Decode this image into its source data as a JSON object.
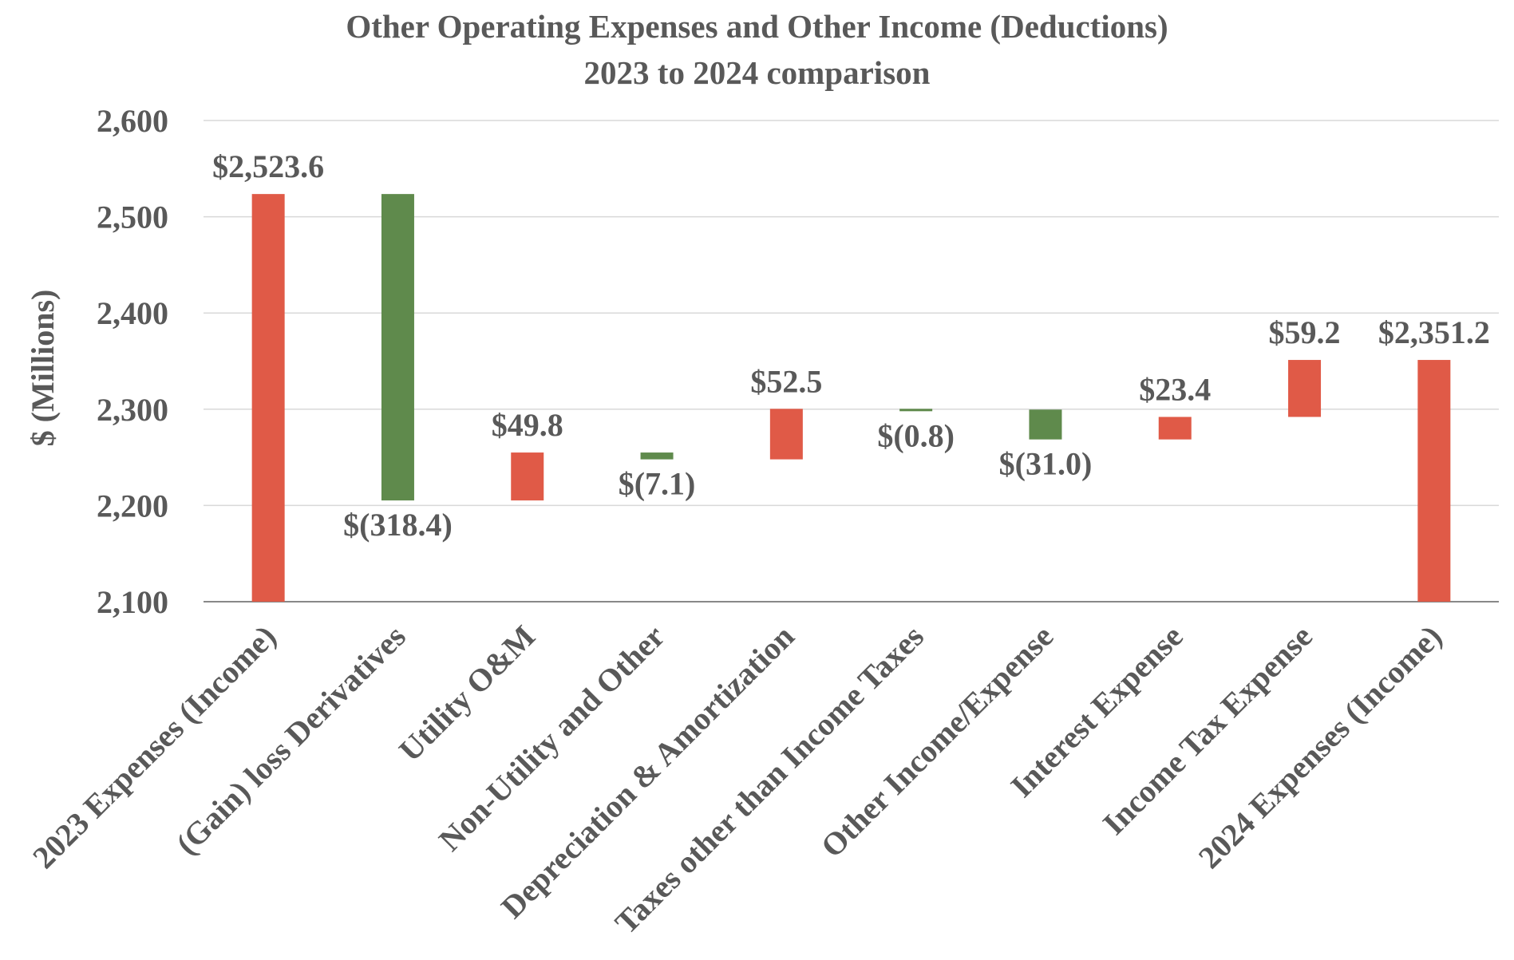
{
  "chart_data": {
    "type": "bar",
    "subtype": "waterfall",
    "title": "Other Operating Expenses and Other Income (Deductions)",
    "subtitle": "2023 to 2024 comparison",
    "xlabel": "",
    "ylabel": "$ (Millions)",
    "ylim": [
      2100,
      2600
    ],
    "yticks": [
      2100,
      2200,
      2300,
      2400,
      2500,
      2600
    ],
    "ytick_labels": [
      "2,100",
      "2,200",
      "2,300",
      "2,400",
      "2,500",
      "2,600"
    ],
    "grid": true,
    "legend": "none",
    "colors": {
      "increase": "#e05a47",
      "decrease": "#5f8a4c",
      "total": "#e05a47",
      "axis": "#888888",
      "grid": "#d9d9d9",
      "text": "#595959"
    },
    "categories": [
      "2023 Expenses (Income)",
      "(Gain) loss Derivatives",
      "Utility O&M",
      "Non-Utility and Other",
      "Depreciation & Amortization",
      "Taxes other than Income Taxes",
      "Other Income/Expense",
      "Interest Expense",
      "Income Tax Expense",
      "2024 Expenses (Income)"
    ],
    "values": [
      2523.6,
      -318.4,
      49.8,
      -7.1,
      52.5,
      -0.8,
      -31.0,
      23.4,
      59.2,
      2351.2
    ],
    "kinds": [
      "total",
      "delta",
      "delta",
      "delta",
      "delta",
      "delta",
      "delta",
      "delta",
      "delta",
      "total"
    ],
    "data_labels": [
      "$2,523.6",
      "$(318.4)",
      "$49.8",
      "$(7.1)",
      "$52.5",
      "$(0.8)",
      "$(31.0)",
      "$23.4",
      "$59.2",
      "$2,351.2"
    ]
  }
}
